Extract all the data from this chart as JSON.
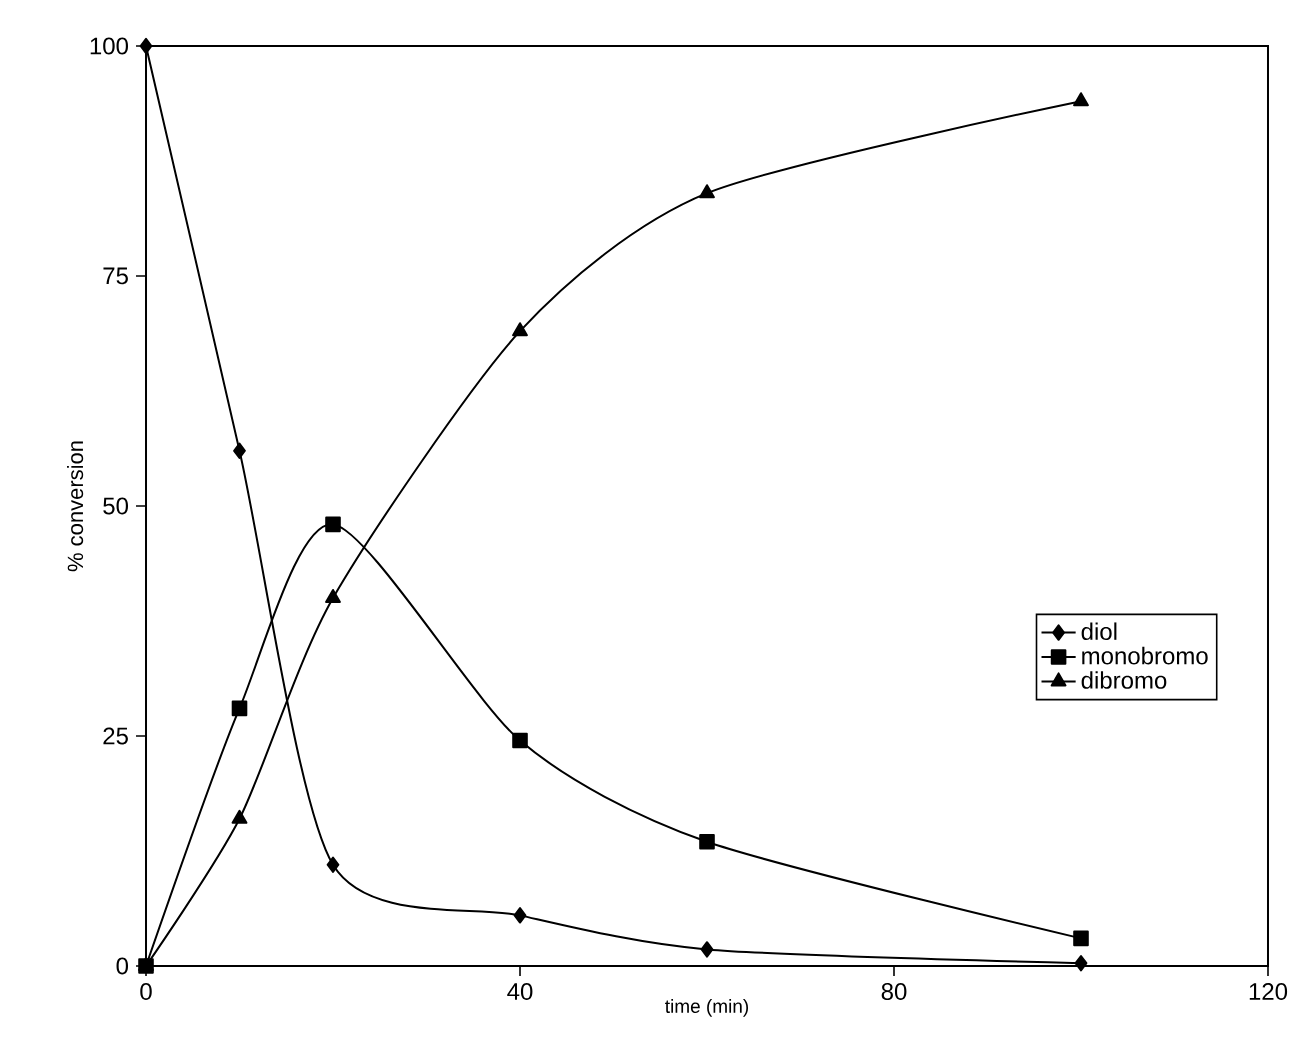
{
  "chart_data": {
    "type": "line",
    "xlabel": "time (min)",
    "ylabel": "% conversion",
    "x": [
      0,
      10,
      20,
      40,
      60,
      100
    ],
    "series": [
      {
        "name": "diol",
        "color": "#000000",
        "marker": "diamond",
        "values": [
          100,
          56,
          11,
          5.5,
          1.8,
          0.3
        ]
      },
      {
        "name": "monobromo",
        "color": "#000000",
        "marker": "square",
        "values": [
          0,
          28,
          48,
          24.5,
          13.5,
          3
        ]
      },
      {
        "name": "dibromo",
        "color": "#000000",
        "marker": "triangle",
        "values": [
          0,
          16,
          40,
          69,
          84,
          94
        ]
      }
    ],
    "xlim": [
      0,
      120
    ],
    "xticks": [
      0,
      40,
      80,
      120
    ],
    "ylim": [
      0,
      100
    ],
    "yticks": [
      0,
      25,
      50,
      75,
      100
    ],
    "grid": false,
    "legend": "right",
    "line_style": "solid"
  }
}
